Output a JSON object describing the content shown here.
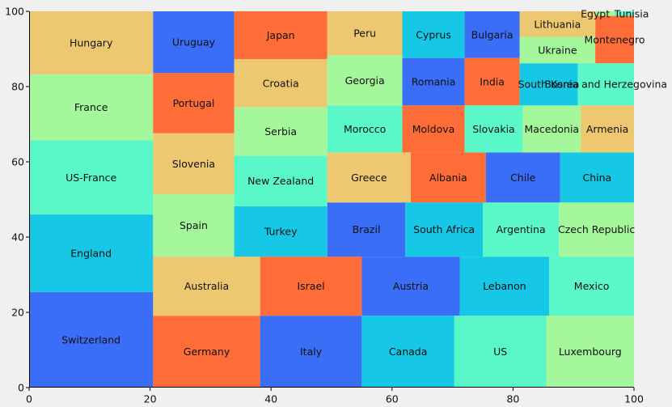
{
  "chart_data": {
    "type": "treemap",
    "xlim": [
      0,
      100
    ],
    "ylim": [
      0,
      100
    ],
    "x_ticks": [
      0,
      20,
      40,
      60,
      80,
      100
    ],
    "y_ticks": [
      0,
      20,
      40,
      60,
      80,
      100
    ],
    "grid": false,
    "background": "#f0f0f0",
    "palette": {
      "blue": "#3b6ef6",
      "cyan": "#17c8e6",
      "teal": "#5af7c8",
      "lightgreen": "#a4f79a",
      "tan": "#edc870",
      "orange": "#fe6c38"
    },
    "rects": [
      {
        "label": "Switzerland",
        "x": 0,
        "y": 0,
        "w": 20.5,
        "h": 25.4,
        "color": "blue"
      },
      {
        "label": "England",
        "x": 0,
        "y": 25.4,
        "w": 20.5,
        "h": 20.6,
        "color": "cyan"
      },
      {
        "label": "US-France",
        "x": 0,
        "y": 46,
        "w": 20.5,
        "h": 19.7,
        "color": "teal"
      },
      {
        "label": "France",
        "x": 0,
        "y": 65.7,
        "w": 20.5,
        "h": 17.6,
        "color": "lightgreen"
      },
      {
        "label": "Hungary",
        "x": 0,
        "y": 83.3,
        "w": 20.5,
        "h": 16.7,
        "color": "tan"
      },
      {
        "label": "Germany",
        "x": 20.5,
        "y": 0,
        "w": 17.7,
        "h": 19.1,
        "color": "orange"
      },
      {
        "label": "Australia",
        "x": 20.5,
        "y": 19.1,
        "w": 17.7,
        "h": 15.7,
        "color": "tan"
      },
      {
        "label": "Spain",
        "x": 20.5,
        "y": 34.8,
        "w": 13.4,
        "h": 16.6,
        "color": "lightgreen"
      },
      {
        "label": "Slovenia",
        "x": 20.5,
        "y": 51.4,
        "w": 13.4,
        "h": 16.2,
        "color": "tan"
      },
      {
        "label": "Portugal",
        "x": 20.5,
        "y": 67.6,
        "w": 13.4,
        "h": 16.0,
        "color": "orange"
      },
      {
        "label": "Uruguay",
        "x": 20.5,
        "y": 83.6,
        "w": 13.4,
        "h": 16.4,
        "color": "blue"
      },
      {
        "label": "Italy",
        "x": 38.2,
        "y": 0,
        "w": 16.8,
        "h": 19.1,
        "color": "blue"
      },
      {
        "label": "Israel",
        "x": 38.2,
        "y": 19.1,
        "w": 16.8,
        "h": 15.7,
        "color": "orange"
      },
      {
        "label": "Turkey",
        "x": 33.9,
        "y": 34.8,
        "w": 15.4,
        "h": 13.4,
        "color": "cyan"
      },
      {
        "label": "New Zealand",
        "x": 33.9,
        "y": 48.2,
        "w": 15.4,
        "h": 13.4,
        "color": "teal"
      },
      {
        "label": "Serbia",
        "x": 33.9,
        "y": 61.6,
        "w": 15.4,
        "h": 12.9,
        "color": "lightgreen"
      },
      {
        "label": "Croatia",
        "x": 33.9,
        "y": 74.5,
        "w": 15.4,
        "h": 12.8,
        "color": "tan"
      },
      {
        "label": "Japan",
        "x": 33.9,
        "y": 87.3,
        "w": 15.4,
        "h": 12.7,
        "color": "orange"
      },
      {
        "label": "Canada",
        "x": 55,
        "y": 0,
        "w": 15.3,
        "h": 19.1,
        "color": "cyan"
      },
      {
        "label": "Austria",
        "x": 55,
        "y": 19.1,
        "w": 16.2,
        "h": 15.7,
        "color": "blue"
      },
      {
        "label": "Brazil",
        "x": 49.3,
        "y": 34.8,
        "w": 12.9,
        "h": 14.4,
        "color": "blue"
      },
      {
        "label": "Greece",
        "x": 49.3,
        "y": 49.2,
        "w": 13.8,
        "h": 13.3,
        "color": "tan"
      },
      {
        "label": "Morocco",
        "x": 49.3,
        "y": 62.5,
        "w": 12.4,
        "h": 12.5,
        "color": "teal"
      },
      {
        "label": "Georgia",
        "x": 49.3,
        "y": 75,
        "w": 12.4,
        "h": 13.3,
        "color": "lightgreen"
      },
      {
        "label": "Peru",
        "x": 49.3,
        "y": 88.3,
        "w": 12.4,
        "h": 11.7,
        "color": "tan"
      },
      {
        "label": "US",
        "x": 70.3,
        "y": 0,
        "w": 15.2,
        "h": 19.1,
        "color": "teal"
      },
      {
        "label": "Luxembourg",
        "x": 85.5,
        "y": 0,
        "w": 14.5,
        "h": 19.1,
        "color": "lightgreen"
      },
      {
        "label": "Lebanon",
        "x": 71.2,
        "y": 19.1,
        "w": 14.8,
        "h": 15.7,
        "color": "cyan"
      },
      {
        "label": "Mexico",
        "x": 86,
        "y": 19.1,
        "w": 14,
        "h": 15.7,
        "color": "teal"
      },
      {
        "label": "South Africa",
        "x": 62.2,
        "y": 34.8,
        "w": 12.8,
        "h": 14.4,
        "color": "cyan"
      },
      {
        "label": "Argentina",
        "x": 75,
        "y": 34.8,
        "w": 12.6,
        "h": 14.4,
        "color": "teal"
      },
      {
        "label": "Czech Republic",
        "x": 87.6,
        "y": 34.8,
        "w": 12.4,
        "h": 14.4,
        "color": "lightgreen"
      },
      {
        "label": "Albania",
        "x": 63.1,
        "y": 49.2,
        "w": 12.4,
        "h": 13.3,
        "color": "orange"
      },
      {
        "label": "Chile",
        "x": 75.5,
        "y": 49.2,
        "w": 12.3,
        "h": 13.3,
        "color": "blue"
      },
      {
        "label": "China",
        "x": 87.8,
        "y": 49.2,
        "w": 12.2,
        "h": 13.3,
        "color": "cyan"
      },
      {
        "label": "Moldova",
        "x": 61.7,
        "y": 62.5,
        "w": 10.3,
        "h": 12.5,
        "color": "orange"
      },
      {
        "label": "Slovakia",
        "x": 72,
        "y": 62.5,
        "w": 9.6,
        "h": 12.5,
        "color": "teal"
      },
      {
        "label": "Macedonia",
        "x": 81.6,
        "y": 62.5,
        "w": 9.6,
        "h": 12.5,
        "color": "lightgreen"
      },
      {
        "label": "Armenia",
        "x": 91.2,
        "y": 62.5,
        "w": 8.8,
        "h": 12.5,
        "color": "tan"
      },
      {
        "label": "Romania",
        "x": 61.7,
        "y": 75,
        "w": 10.3,
        "h": 12.6,
        "color": "blue"
      },
      {
        "label": "India",
        "x": 72,
        "y": 75,
        "w": 9.1,
        "h": 12.6,
        "color": "orange"
      },
      {
        "label": "South Korea",
        "x": 81.1,
        "y": 75,
        "w": 9.6,
        "h": 11.2,
        "color": "cyan"
      },
      {
        "label": "Bosnia and Herzegovina",
        "x": 90.7,
        "y": 75,
        "w": 9.3,
        "h": 11.2,
        "color": "teal"
      },
      {
        "label": "Cyprus",
        "x": 61.7,
        "y": 87.6,
        "w": 10.3,
        "h": 12.4,
        "color": "cyan"
      },
      {
        "label": "Bulgaria",
        "x": 72,
        "y": 87.6,
        "w": 9.1,
        "h": 12.4,
        "color": "blue"
      },
      {
        "label": "Ukraine",
        "x": 81.1,
        "y": 86.2,
        "w": 12.5,
        "h": 7.0,
        "color": "lightgreen"
      },
      {
        "label": "Montenegro",
        "x": 93.6,
        "y": 86.2,
        "w": 6.4,
        "h": 12.6,
        "color": "orange"
      },
      {
        "label": "Lithuania",
        "x": 81.1,
        "y": 93.2,
        "w": 12.5,
        "h": 6.8,
        "color": "tan"
      },
      {
        "label": "Egypt",
        "x": 93.6,
        "y": 98.8,
        "w": 3.2,
        "h": 1.2,
        "color": "lightgreen"
      },
      {
        "label": "Tunisia",
        "x": 96.8,
        "y": 98.8,
        "w": 3.2,
        "h": 1.2,
        "color": "teal"
      }
    ],
    "label_offsets": {
      "Egypt": -1.6,
      "Tunisia": 1.2
    }
  }
}
